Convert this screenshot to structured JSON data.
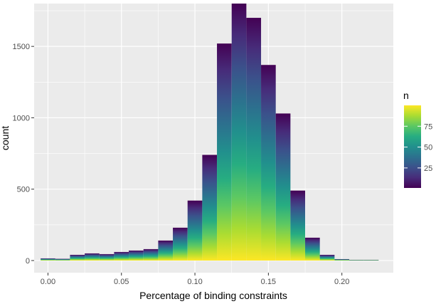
{
  "chart_data": {
    "type": "bar",
    "subtype": "histogram",
    "title": "",
    "xlabel": "Percentage of binding constraints",
    "ylabel": "count",
    "xlim": [
      -0.0094,
      0.235
    ],
    "ylim": [
      -85,
      1800
    ],
    "x_ticks": [
      0.0,
      0.05,
      0.1,
      0.15,
      0.2
    ],
    "x_tick_labels": [
      "0.00",
      "0.05",
      "0.10",
      "0.15",
      "0.20"
    ],
    "y_ticks": [
      0,
      500,
      1000,
      1500
    ],
    "y_tick_labels": [
      "0",
      "500",
      "1000",
      "1500"
    ],
    "bin_width": 0.01,
    "bin_centers": [
      0.0,
      0.01,
      0.02,
      0.03,
      0.04,
      0.05,
      0.06,
      0.07,
      0.08,
      0.09,
      0.1,
      0.11,
      0.12,
      0.13,
      0.14,
      0.15,
      0.16,
      0.17,
      0.18,
      0.19,
      0.2,
      0.21,
      0.22
    ],
    "counts": [
      15,
      12,
      40,
      50,
      45,
      60,
      70,
      80,
      140,
      230,
      420,
      740,
      1520,
      1800,
      1700,
      1370,
      1030,
      490,
      160,
      40,
      10,
      5,
      5
    ],
    "fill_scale": {
      "title": "n",
      "range": [
        1,
        100
      ],
      "breaks": [
        25,
        50,
        75
      ],
      "break_labels": [
        "25",
        "50",
        "75"
      ],
      "colors": [
        "#440154",
        "#472c7a",
        "#3b518b",
        "#2c718e",
        "#21908d",
        "#27ad81",
        "#5cc863",
        "#aadc32",
        "#fde725"
      ]
    },
    "legend_position": "right",
    "grid": true,
    "panel_background": "#ebebeb",
    "grid_color": "#ffffff"
  }
}
